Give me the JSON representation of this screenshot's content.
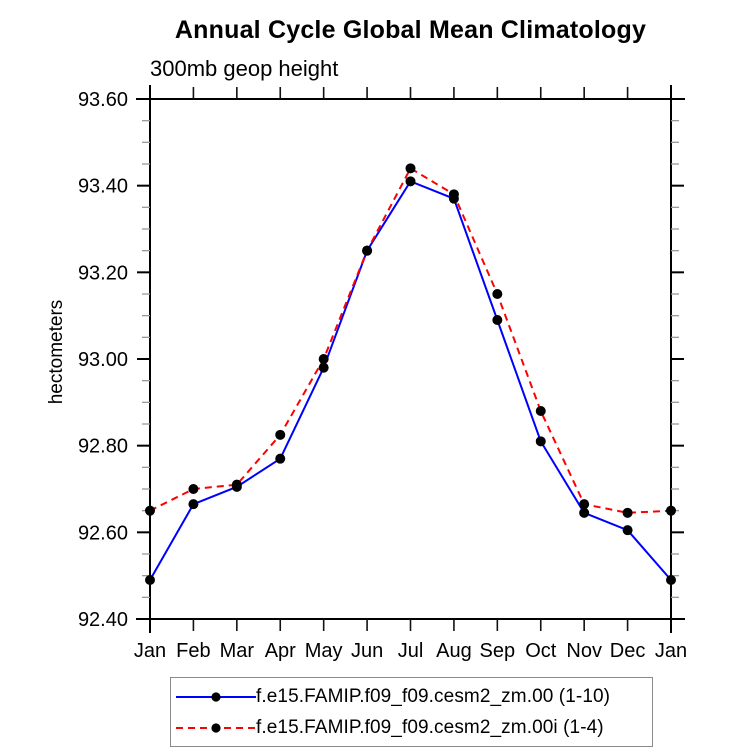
{
  "chart_data": {
    "type": "line",
    "title": "Annual Cycle Global Mean Climatology",
    "subtitle": "300mb geop height",
    "ylabel": "hectometers",
    "categories": [
      "Jan",
      "Feb",
      "Mar",
      "Apr",
      "May",
      "Jun",
      "Jul",
      "Aug",
      "Sep",
      "Oct",
      "Nov",
      "Dec",
      "Jan"
    ],
    "series": [
      {
        "name": "f.e15.FAMIP.f09_f09.cesm2_zm.00 (1-10)",
        "color": "#0000ff",
        "style": "solid",
        "values": [
          92.49,
          92.665,
          92.705,
          92.77,
          92.98,
          93.25,
          93.41,
          93.37,
          93.09,
          92.81,
          92.645,
          92.605,
          92.49
        ]
      },
      {
        "name": "f.e15.FAMIP.f09_f09.cesm2_zm.00i (1-4)",
        "color": "#ff0000",
        "style": "dashed",
        "values": [
          92.65,
          92.7,
          92.71,
          92.825,
          93.0,
          93.25,
          93.44,
          93.38,
          93.15,
          92.88,
          92.665,
          92.645,
          92.65
        ]
      }
    ],
    "ylim": [
      92.4,
      93.6
    ],
    "ytick_interval": 0.2,
    "yminor_interval": 0.05,
    "ytick_labels": [
      "93.60",
      "93.40",
      "93.20",
      "93.00",
      "92.80",
      "92.60",
      "92.40"
    ],
    "marker_color": "#000000",
    "axis_color": "#000000",
    "minor_tick_color": "#999999",
    "legend_position": "bottom",
    "grid": "off"
  }
}
